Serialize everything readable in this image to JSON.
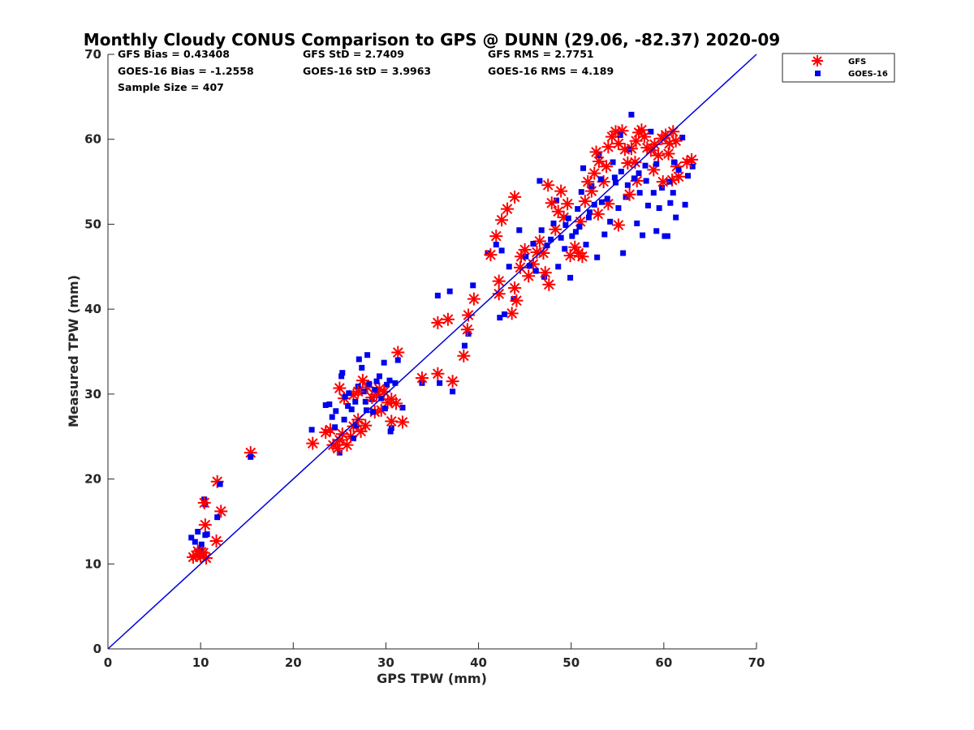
{
  "chart_data": {
    "type": "scatter",
    "title": "Monthly Cloudy CONUS Comparison to GPS @ DUNN (29.06, -82.37) 2020-09",
    "xlabel": "GPS TPW (mm)",
    "ylabel": "Measured TPW (mm)",
    "xlim": [
      0,
      70
    ],
    "ylim": [
      0,
      70
    ],
    "xticks": [
      "0",
      "10",
      "20",
      "30",
      "40",
      "50",
      "60",
      "70"
    ],
    "yticks": [
      "0",
      "10",
      "20",
      "30",
      "40",
      "50",
      "60",
      "70"
    ],
    "grid": false,
    "legend_position": "top-right (outside plot)",
    "stats": {
      "gfs_bias": "GFS Bias = 0.43408",
      "gfs_std": "GFS StD = 2.7409",
      "gfs_rms": "GFS RMS = 2.7751",
      "goes_bias": "GOES-16 Bias = -1.2558",
      "goes_std": "GOES-16 StD = 3.9963",
      "goes_rms": "GOES-16 RMS = 4.189",
      "sample_size": "Sample Size = 407"
    },
    "reference_line": {
      "x": [
        0,
        70
      ],
      "y": [
        0,
        70
      ],
      "color": "#0000dd"
    },
    "series": [
      {
        "name": "GFS",
        "marker": "asterisk",
        "color": "#ff0000",
        "points": [
          [
            9.2,
            10.8
          ],
          [
            9.5,
            11.0
          ],
          [
            9.8,
            11.2
          ],
          [
            10.0,
            10.9
          ],
          [
            10.3,
            11.3
          ],
          [
            10.6,
            10.7
          ],
          [
            9.7,
            11.5
          ],
          [
            10.1,
            11.4
          ],
          [
            10.5,
            14.6
          ],
          [
            10.4,
            17.2
          ],
          [
            11.8,
            19.7
          ],
          [
            12.2,
            16.2
          ],
          [
            11.7,
            12.7
          ],
          [
            15.4,
            23.1
          ],
          [
            22.1,
            24.2
          ],
          [
            23.5,
            25.5
          ],
          [
            24.0,
            25.8
          ],
          [
            24.3,
            24.0
          ],
          [
            24.8,
            23.6
          ],
          [
            25.0,
            24.6
          ],
          [
            25.3,
            25.3
          ],
          [
            25.8,
            24.0
          ],
          [
            26.2,
            25.0
          ],
          [
            26.5,
            26.2
          ],
          [
            27.0,
            27.0
          ],
          [
            27.3,
            25.6
          ],
          [
            27.8,
            26.3
          ],
          [
            25.0,
            30.7
          ],
          [
            25.5,
            29.5
          ],
          [
            26.5,
            29.9
          ],
          [
            27.0,
            30.3
          ],
          [
            27.5,
            31.6
          ],
          [
            28.0,
            30.8
          ],
          [
            28.5,
            29.6
          ],
          [
            29.0,
            30.0
          ],
          [
            29.3,
            30.6
          ],
          [
            29.8,
            30.3
          ],
          [
            30.2,
            29.0
          ],
          [
            30.6,
            29.4
          ],
          [
            31.1,
            28.9
          ],
          [
            28.8,
            27.9
          ],
          [
            29.5,
            28.1
          ],
          [
            30.6,
            26.8
          ],
          [
            31.8,
            26.7
          ],
          [
            31.3,
            34.9
          ],
          [
            33.9,
            31.9
          ],
          [
            35.6,
            32.4
          ],
          [
            37.2,
            31.5
          ],
          [
            35.6,
            38.4
          ],
          [
            36.7,
            38.8
          ],
          [
            38.4,
            34.5
          ],
          [
            38.8,
            37.6
          ],
          [
            38.9,
            39.3
          ],
          [
            39.5,
            41.2
          ],
          [
            41.3,
            46.4
          ],
          [
            41.9,
            48.6
          ],
          [
            42.2,
            41.8
          ],
          [
            42.2,
            43.3
          ],
          [
            42.5,
            50.5
          ],
          [
            43.1,
            51.8
          ],
          [
            43.9,
            53.2
          ],
          [
            43.6,
            39.5
          ],
          [
            43.9,
            42.5
          ],
          [
            44.1,
            41.0
          ],
          [
            44.5,
            44.9
          ],
          [
            44.6,
            46.2
          ],
          [
            45.0,
            47.0
          ],
          [
            45.4,
            43.9
          ],
          [
            45.9,
            45.3
          ],
          [
            46.3,
            46.7
          ],
          [
            46.6,
            48.0
          ],
          [
            47.0,
            46.6
          ],
          [
            47.2,
            44.3
          ],
          [
            47.6,
            42.9
          ],
          [
            47.5,
            54.6
          ],
          [
            47.9,
            52.5
          ],
          [
            48.3,
            49.4
          ],
          [
            48.6,
            51.5
          ],
          [
            48.9,
            53.9
          ],
          [
            49.2,
            50.8
          ],
          [
            49.6,
            52.4
          ],
          [
            49.9,
            46.3
          ],
          [
            50.4,
            47.3
          ],
          [
            50.8,
            46.6
          ],
          [
            51.2,
            46.2
          ],
          [
            51.0,
            50.3
          ],
          [
            51.5,
            52.7
          ],
          [
            51.8,
            55.0
          ],
          [
            52.2,
            53.9
          ],
          [
            52.5,
            56.0
          ],
          [
            52.7,
            58.5
          ],
          [
            53.0,
            57.4
          ],
          [
            53.5,
            55.0
          ],
          [
            53.8,
            56.8
          ],
          [
            54.0,
            59.1
          ],
          [
            54.4,
            60.3
          ],
          [
            54.8,
            60.9
          ],
          [
            55.1,
            59.5
          ],
          [
            55.5,
            61.0
          ],
          [
            55.8,
            58.8
          ],
          [
            56.1,
            57.2
          ],
          [
            56.5,
            58.9
          ],
          [
            57.0,
            59.8
          ],
          [
            57.3,
            60.8
          ],
          [
            57.6,
            61.1
          ],
          [
            57.9,
            60.3
          ],
          [
            58.2,
            59.0
          ],
          [
            58.6,
            58.7
          ],
          [
            59.0,
            59.4
          ],
          [
            59.4,
            58.1
          ],
          [
            59.8,
            60.1
          ],
          [
            60.2,
            60.5
          ],
          [
            60.6,
            59.5
          ],
          [
            61.0,
            60.9
          ],
          [
            61.3,
            59.8
          ],
          [
            61.6,
            55.6
          ],
          [
            60.9,
            55.2
          ],
          [
            59.9,
            55.0
          ],
          [
            60.5,
            58.3
          ],
          [
            61.4,
            56.8
          ],
          [
            62.5,
            57.3
          ],
          [
            63.0,
            57.6
          ],
          [
            55.1,
            49.9
          ],
          [
            56.3,
            53.5
          ],
          [
            57.1,
            55.1
          ],
          [
            54.0,
            52.4
          ],
          [
            52.9,
            51.2
          ],
          [
            56.9,
            57.3
          ],
          [
            58.9,
            56.4
          ]
        ]
      },
      {
        "name": "GOES-16",
        "marker": "square",
        "color": "#0000ee",
        "points": [
          [
            9.0,
            13.1
          ],
          [
            9.4,
            12.6
          ],
          [
            9.7,
            13.8
          ],
          [
            10.1,
            12.3
          ],
          [
            10.5,
            13.4
          ],
          [
            9.9,
            11.7
          ],
          [
            10.7,
            13.5
          ],
          [
            10.4,
            17.6
          ],
          [
            10.5,
            17.0
          ],
          [
            11.8,
            15.5
          ],
          [
            12.1,
            19.4
          ],
          [
            15.4,
            22.6
          ],
          [
            22.0,
            25.8
          ],
          [
            23.5,
            28.7
          ],
          [
            23.9,
            28.8
          ],
          [
            24.2,
            27.3
          ],
          [
            24.5,
            26.1
          ],
          [
            24.6,
            28.0
          ],
          [
            25.0,
            23.1
          ],
          [
            25.2,
            32.1
          ],
          [
            25.3,
            32.5
          ],
          [
            25.6,
            29.7
          ],
          [
            25.9,
            28.6
          ],
          [
            26.0,
            30.1
          ],
          [
            26.3,
            28.2
          ],
          [
            26.5,
            24.8
          ],
          [
            26.7,
            29.1
          ],
          [
            27.0,
            30.9
          ],
          [
            27.1,
            34.1
          ],
          [
            27.4,
            33.1
          ],
          [
            27.6,
            30.3
          ],
          [
            27.8,
            29.1
          ],
          [
            28.0,
            34.6
          ],
          [
            28.2,
            31.2
          ],
          [
            28.5,
            29.4
          ],
          [
            28.8,
            30.5
          ],
          [
            29.0,
            31.5
          ],
          [
            29.3,
            32.1
          ],
          [
            29.5,
            29.5
          ],
          [
            29.8,
            33.7
          ],
          [
            30.1,
            31.1
          ],
          [
            30.4,
            31.6
          ],
          [
            30.6,
            26.0
          ],
          [
            30.5,
            25.6
          ],
          [
            31.0,
            31.3
          ],
          [
            31.3,
            34.0
          ],
          [
            31.8,
            28.4
          ],
          [
            25.5,
            27.0
          ],
          [
            26.8,
            26.3
          ],
          [
            27.9,
            28.1
          ],
          [
            28.6,
            27.9
          ],
          [
            29.9,
            28.3
          ],
          [
            33.9,
            31.3
          ],
          [
            35.8,
            31.3
          ],
          [
            37.2,
            30.3
          ],
          [
            35.6,
            41.6
          ],
          [
            36.9,
            42.1
          ],
          [
            38.5,
            35.7
          ],
          [
            38.9,
            37.1
          ],
          [
            39.4,
            42.8
          ],
          [
            41.0,
            46.6
          ],
          [
            41.9,
            47.6
          ],
          [
            42.3,
            39.0
          ],
          [
            42.8,
            39.4
          ],
          [
            42.5,
            46.9
          ],
          [
            43.3,
            45.0
          ],
          [
            43.8,
            41.2
          ],
          [
            44.4,
            49.3
          ],
          [
            45.1,
            46.2
          ],
          [
            45.5,
            45.1
          ],
          [
            45.9,
            47.7
          ],
          [
            46.2,
            44.5
          ],
          [
            46.6,
            55.1
          ],
          [
            46.8,
            49.3
          ],
          [
            47.1,
            43.8
          ],
          [
            47.4,
            47.5
          ],
          [
            47.8,
            48.2
          ],
          [
            48.1,
            50.1
          ],
          [
            48.4,
            52.8
          ],
          [
            48.6,
            45.0
          ],
          [
            48.9,
            48.4
          ],
          [
            49.3,
            47.1
          ],
          [
            49.7,
            50.7
          ],
          [
            49.9,
            43.7
          ],
          [
            50.1,
            48.6
          ],
          [
            50.5,
            49.1
          ],
          [
            50.7,
            51.8
          ],
          [
            51.1,
            53.8
          ],
          [
            51.3,
            56.6
          ],
          [
            51.6,
            47.6
          ],
          [
            51.9,
            50.8
          ],
          [
            52.2,
            54.5
          ],
          [
            52.5,
            52.3
          ],
          [
            52.8,
            46.1
          ],
          [
            53.0,
            58.1
          ],
          [
            53.2,
            55.3
          ],
          [
            53.6,
            48.8
          ],
          [
            53.9,
            53.0
          ],
          [
            54.2,
            50.3
          ],
          [
            54.5,
            57.3
          ],
          [
            54.8,
            54.9
          ],
          [
            55.1,
            51.9
          ],
          [
            55.3,
            60.5
          ],
          [
            55.6,
            46.6
          ],
          [
            55.9,
            53.2
          ],
          [
            56.2,
            58.8
          ],
          [
            56.5,
            62.9
          ],
          [
            56.8,
            55.4
          ],
          [
            57.1,
            50.1
          ],
          [
            57.4,
            53.7
          ],
          [
            57.7,
            48.7
          ],
          [
            58.0,
            56.9
          ],
          [
            58.3,
            52.2
          ],
          [
            58.6,
            60.9
          ],
          [
            58.9,
            53.7
          ],
          [
            59.2,
            49.2
          ],
          [
            59.5,
            51.9
          ],
          [
            59.8,
            54.3
          ],
          [
            60.1,
            48.6
          ],
          [
            60.4,
            48.6
          ],
          [
            60.7,
            52.5
          ],
          [
            61.0,
            53.7
          ],
          [
            61.3,
            50.8
          ],
          [
            61.6,
            56.4
          ],
          [
            62.0,
            60.2
          ],
          [
            62.3,
            52.3
          ],
          [
            62.6,
            55.7
          ],
          [
            63.1,
            56.8
          ],
          [
            54.7,
            55.5
          ],
          [
            55.4,
            56.2
          ],
          [
            56.1,
            54.6
          ],
          [
            57.3,
            56.0
          ],
          [
            58.1,
            55.1
          ],
          [
            59.2,
            57.1
          ],
          [
            60.6,
            55.0
          ],
          [
            61.1,
            57.3
          ],
          [
            52.0,
            51.4
          ],
          [
            53.3,
            52.6
          ],
          [
            50.9,
            49.7
          ],
          [
            49.4,
            49.9
          ]
        ]
      }
    ]
  }
}
